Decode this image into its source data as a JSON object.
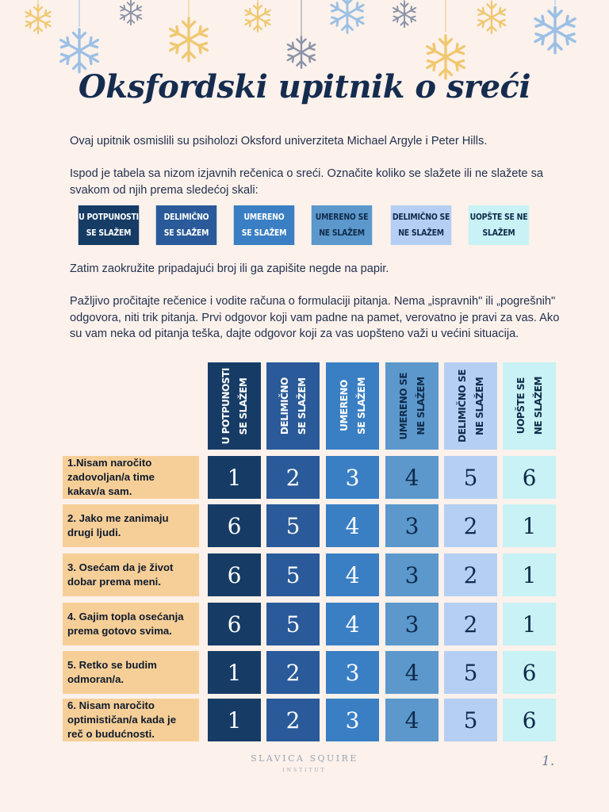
{
  "title": "Oksfordski upitnik o sreći",
  "intro": "Ovaj upitnik osmislili su psiholozi Oksford univerziteta Michael Argyle i Peter Hills.",
  "instruction": "Ispod je tabela sa nizom izjavnih rečenica o sreći. Označite koliko se slažete ili ne slažete sa svakom od njih prema sledećoj skali:",
  "scale": [
    {
      "line1": "U potpunosti",
      "line2": "se slažem",
      "bg": "#163c66",
      "fg": "#ffffff"
    },
    {
      "line1": "Delimično",
      "line2": "se slažem",
      "bg": "#2a5a99",
      "fg": "#ffffff"
    },
    {
      "line1": "Umereno",
      "line2": "se slažem",
      "bg": "#3a7fc4",
      "fg": "#ffffff"
    },
    {
      "line1": "Umereno se",
      "line2": "ne slažem",
      "bg": "#5c98cc",
      "fg": "#0f2a4a"
    },
    {
      "line1": "Delimično se",
      "line2": "ne slažem",
      "bg": "#b4cff3",
      "fg": "#0f2a4a"
    },
    {
      "line1": "Uopšte se ne",
      "line2": "slažem",
      "bg": "#c8f2f5",
      "fg": "#0f2a4a"
    }
  ],
  "then_text": "Zatim zaokružite pripadajući broj ili ga zapišite negde na papir.",
  "careful_text": "Pažljivo pročitajte rečenice i vodite računa o formulaciji pitanja. Nema „ispravnih\" ili „pogrešnih\" odgovora, niti trik pitanja. Prvi odgovor koji vam padne na pamet, verovatno je pravi za vas. Ako su vam neka od pitanja teška, dajte odgovor koji za vas uopšteno važi u većini situacija.",
  "columns": [
    {
      "line1": "U potpunosti",
      "line2": "se slažem"
    },
    {
      "line1": "Delimično",
      "line2": "se slažem"
    },
    {
      "line1": "Umereno",
      "line2": "se slažem"
    },
    {
      "line1": "Umereno se",
      "line2": "ne slažem"
    },
    {
      "line1": "Delimično se",
      "line2": "ne slažem"
    },
    {
      "line1": "Uopšte se",
      "line2": "ne slažem"
    }
  ],
  "questions": [
    {
      "label": "1.Nisam naročito zadovoljan/a time kakav/a sam.",
      "scores": [
        "1",
        "2",
        "3",
        "4",
        "5",
        "6"
      ]
    },
    {
      "label": "2. Jako me zanimaju drugi ljudi.",
      "scores": [
        "6",
        "5",
        "4",
        "3",
        "2",
        "1"
      ]
    },
    {
      "label": "3. Osećam da je život dobar prema meni.",
      "scores": [
        "6",
        "5",
        "4",
        "3",
        "2",
        "1"
      ]
    },
    {
      "label": "4. Gajim topla osećanja prema gotovo svima.",
      "scores": [
        "6",
        "5",
        "4",
        "3",
        "2",
        "1"
      ]
    },
    {
      "label": "5. Retko se budim odmoran/a.",
      "scores": [
        "1",
        "2",
        "3",
        "4",
        "5",
        "6"
      ]
    },
    {
      "label": "6. Nisam naročito optimističan/a kada je reč o budućnosti.",
      "scores": [
        "1",
        "2",
        "3",
        "4",
        "5",
        "6"
      ]
    }
  ],
  "footer": {
    "brand": "SLAVICA SQUIRE",
    "sub": "INSTITUT",
    "page": "1."
  }
}
